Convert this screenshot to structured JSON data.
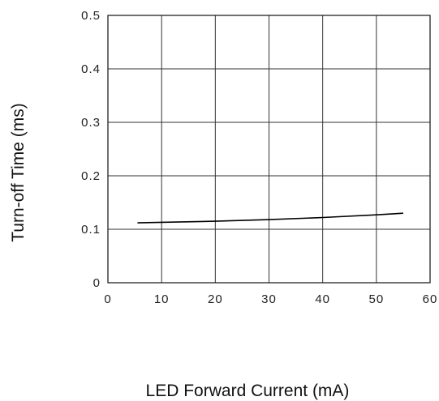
{
  "chart_data": {
    "type": "line",
    "title": "",
    "xlabel": "LED Forward Current (mA)",
    "ylabel": "Turn-off Time (ms)",
    "xlim": [
      0,
      60
    ],
    "ylim": [
      0,
      0.5
    ],
    "xticks": [
      0,
      10,
      20,
      30,
      40,
      50,
      60
    ],
    "yticks": [
      0,
      0.1,
      0.2,
      0.3,
      0.4,
      0.5
    ],
    "xtick_labels": [
      "0",
      "10",
      "20",
      "30",
      "40",
      "50",
      "60"
    ],
    "ytick_labels": [
      "0",
      "0.1",
      "0.2",
      "0.3",
      "0.4",
      "0.5"
    ],
    "grid": true,
    "legend": "none",
    "line_color": "#000000",
    "series": [
      {
        "x": [
          5.5,
          10,
          20,
          30,
          40,
          50,
          55
        ],
        "y": [
          0.112,
          0.113,
          0.115,
          0.118,
          0.122,
          0.127,
          0.13
        ]
      }
    ]
  }
}
